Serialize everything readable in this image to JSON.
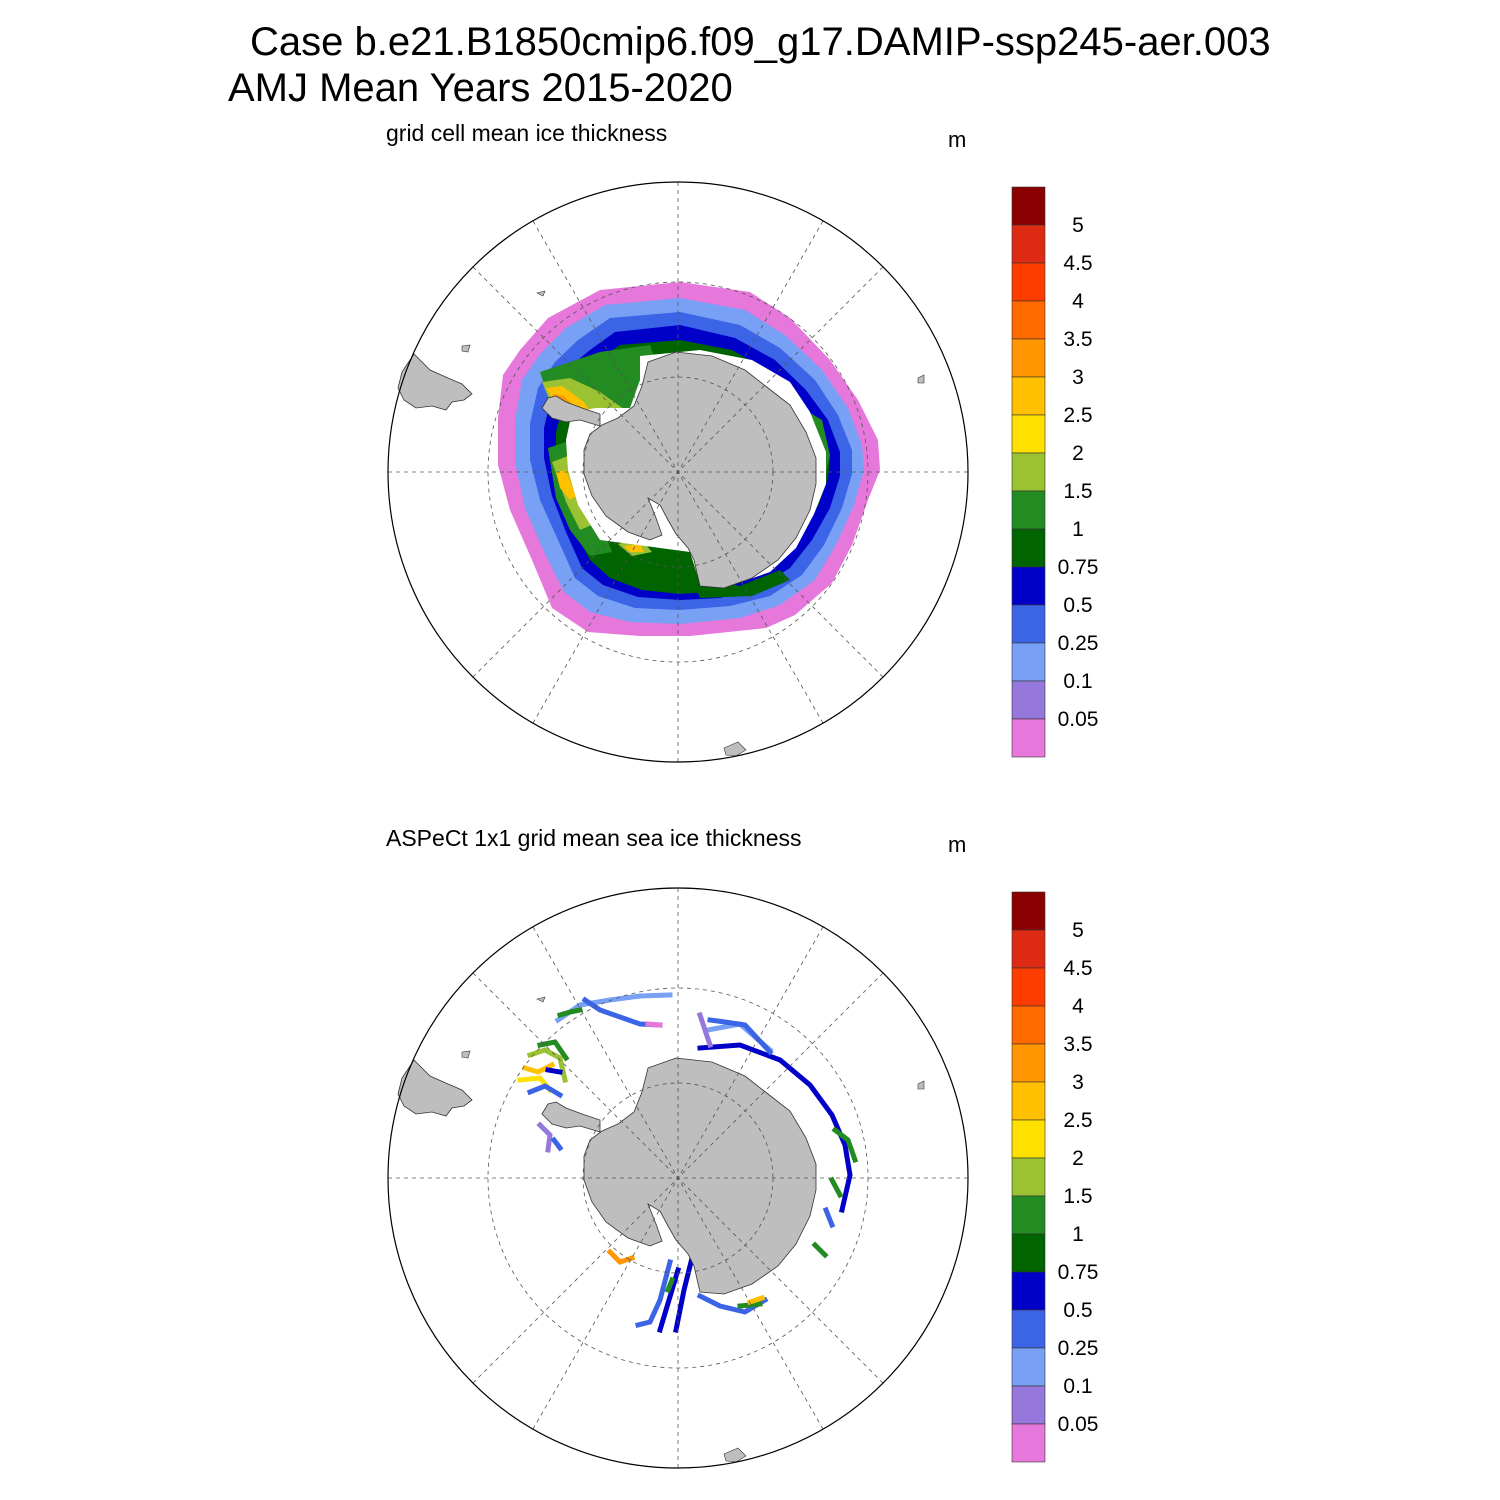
{
  "header": {
    "title_line1": "Case b.e21.B1850cmip6.f09_g17.DAMIP-ssp245-aer.003",
    "title_line2": "AMJ Mean   Years 2015-2020"
  },
  "panels": [
    {
      "title": "grid cell mean ice thickness",
      "units": "m",
      "kind": "model"
    },
    {
      "title": "ASPeCt 1x1 grid mean sea ice thickness",
      "units": "m",
      "kind": "obs"
    }
  ],
  "colorbar": {
    "labels": [
      "5",
      "4.5",
      "4",
      "3.5",
      "3",
      "2.5",
      "2",
      "1.5",
      "1",
      "0.75",
      "0.5",
      "0.25",
      "0.1",
      "0.05"
    ],
    "colors": [
      "#8b0000",
      "#dd2a12",
      "#ff3c00",
      "#ff6a00",
      "#ff9600",
      "#ffc000",
      "#ffe100",
      "#9ac232",
      "#228b22",
      "#006400",
      "#0000c8",
      "#3c64e6",
      "#78a0f5",
      "#9678dc",
      "#e678dc"
    ]
  },
  "colors": {
    "land": "#bebebe",
    "ice_pink": "#e678dc",
    "ice_lightblue": "#78a0f5",
    "ice_blue": "#3c64e6",
    "ice_darkblue": "#0000c8",
    "ice_darkgreen": "#006400",
    "ice_green": "#228b22",
    "ice_olive": "#9ac232",
    "ice_yellow": "#ffe100",
    "ice_orange": "#ff9600",
    "ice_red": "#dd2a12"
  }
}
